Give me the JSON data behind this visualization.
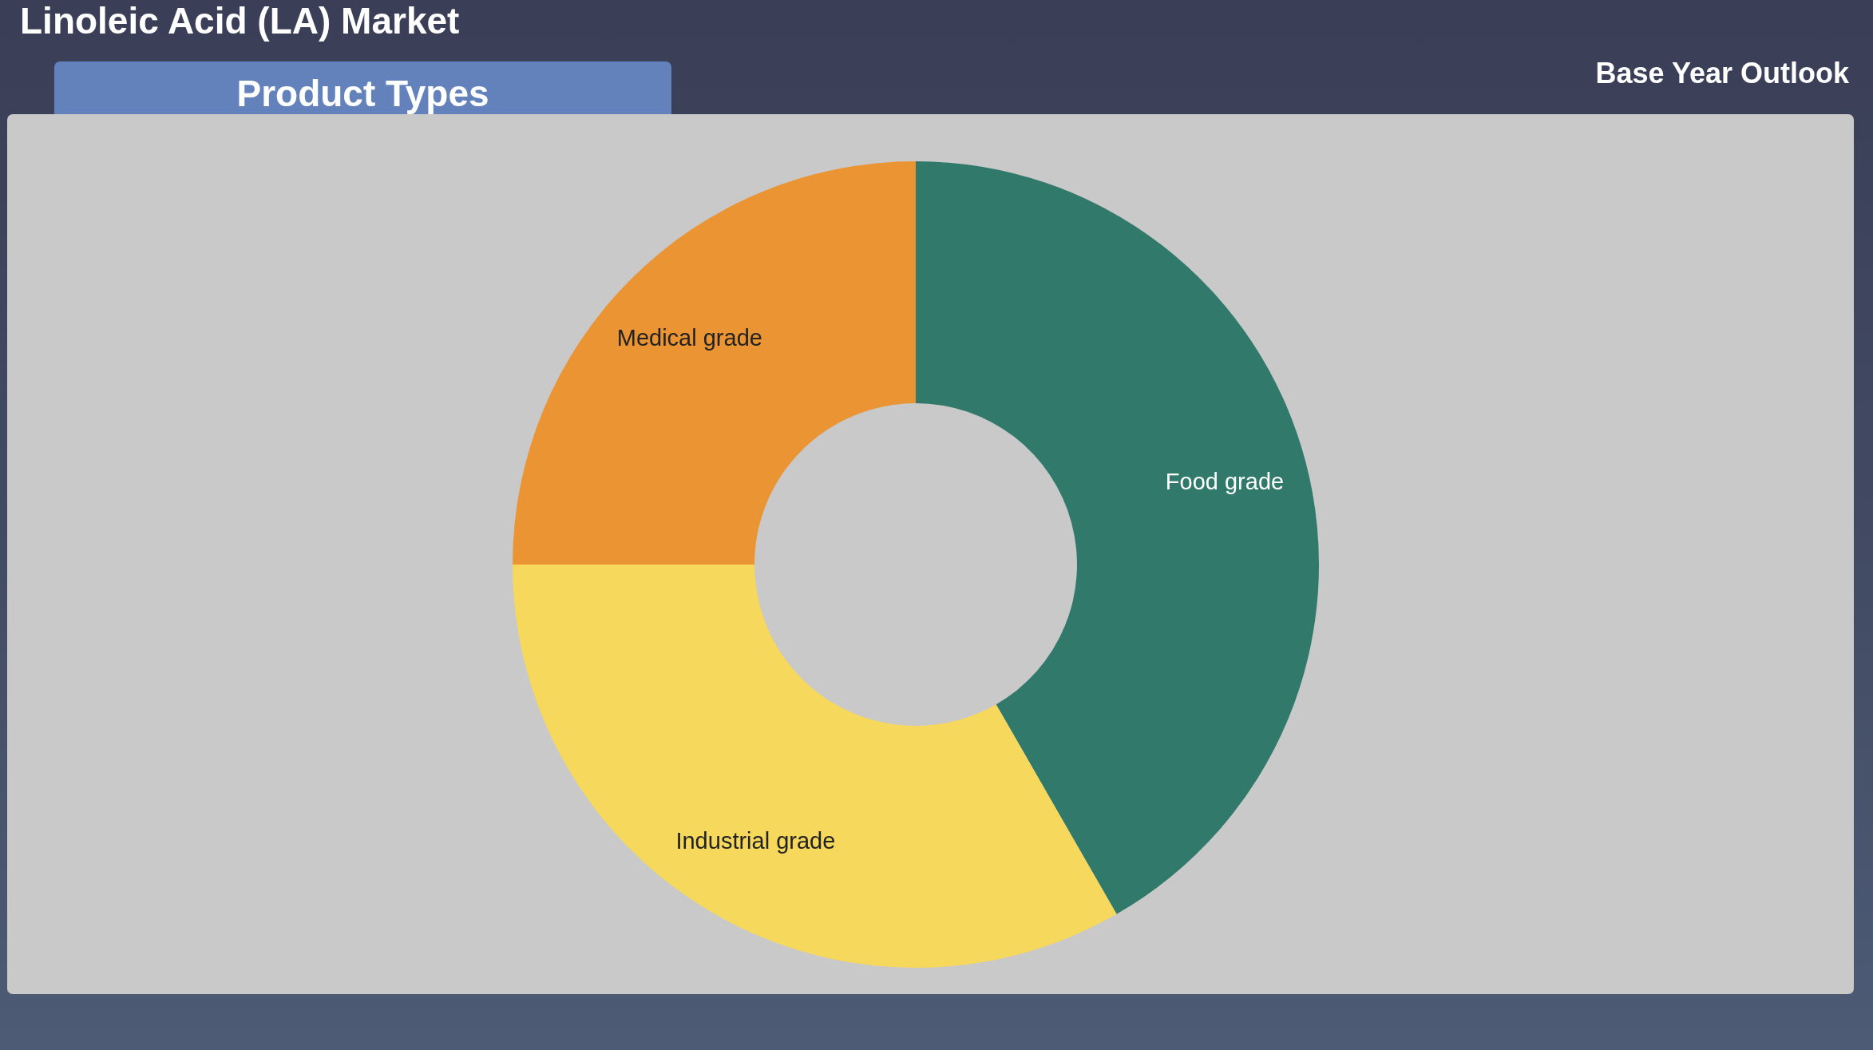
{
  "chart_data": {
    "type": "donut",
    "title": "Linoleic Acid (LA) Market",
    "subtitle": "Product Types",
    "annotations": [
      "Base Year Outlook"
    ],
    "categories": [
      "Food grade",
      "Industrial grade",
      "Medical grade"
    ],
    "values": [
      41.7,
      33.3,
      25.0
    ],
    "colors": [
      "#31796a",
      "#f6d85c",
      "#ea9434"
    ]
  }
}
